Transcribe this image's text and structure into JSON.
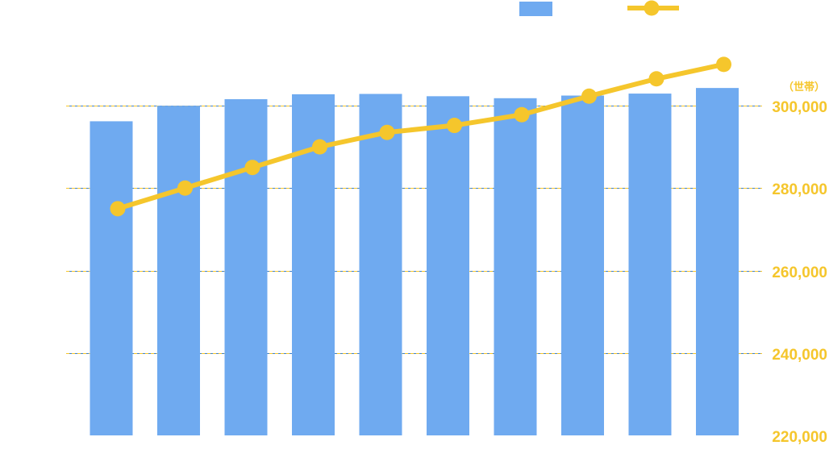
{
  "colors": {
    "bar": "#6faaf0",
    "line": "#f5c62c",
    "left_grid": "#3f7fc5",
    "right_grid": "#f5c62c",
    "right_tick_text": "#f5c62c"
  },
  "chart_data": {
    "type": "bar+line",
    "title": "",
    "xlabel": "",
    "categories": [
      "",
      "",
      "",
      "",
      "",
      "",
      "",
      "",
      "",
      ""
    ],
    "series": [
      {
        "type": "bar",
        "axis": "left",
        "values": [
          0.953,
          1.0,
          1.02,
          1.035,
          1.036,
          1.029,
          1.023,
          1.031,
          1.037,
          1.054
        ]
      },
      {
        "type": "line",
        "axis": "right",
        "values": [
          275000,
          280000,
          285000,
          290000,
          293500,
          295200,
          297800,
          302300,
          306500,
          310000
        ]
      }
    ],
    "left_axis": {
      "range": [
        0,
        1.25
      ],
      "gridlines": [
        0.25,
        0.5,
        0.75,
        1.0
      ]
    },
    "right_axis": {
      "range": [
        220000,
        300000
      ],
      "unit": "（世帯）",
      "ticks": [
        {
          "value": 300000,
          "label": "300,000"
        },
        {
          "value": 280000,
          "label": "280,000"
        },
        {
          "value": 260000,
          "label": "260,000"
        },
        {
          "value": 240000,
          "label": "240,000"
        },
        {
          "value": 220000,
          "label": "220,000"
        }
      ]
    },
    "legend": {
      "position": "top-right",
      "entries": [
        "",
        ""
      ]
    },
    "grid": true
  }
}
